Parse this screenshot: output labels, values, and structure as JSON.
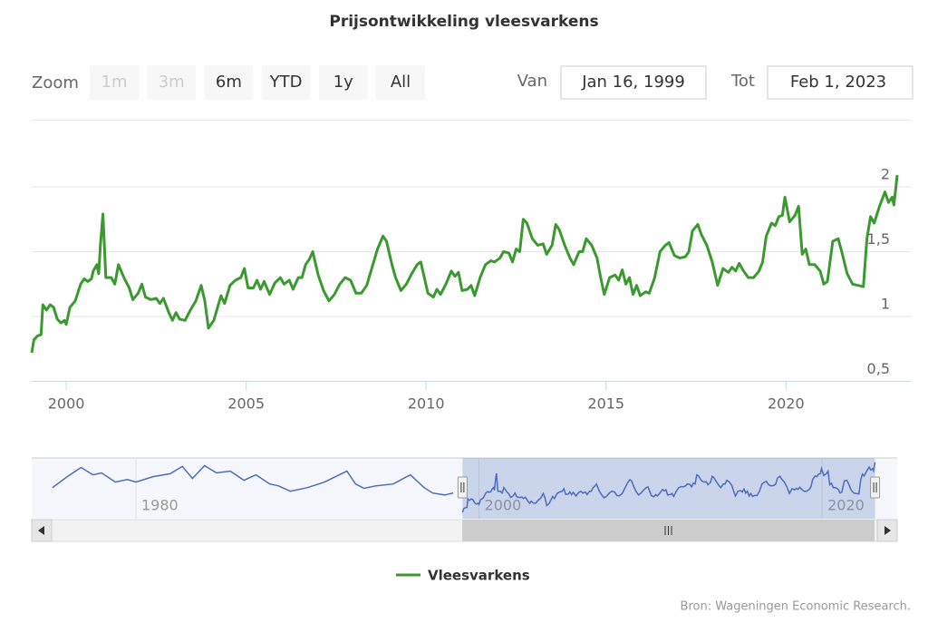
{
  "chart_data": {
    "type": "line",
    "title": "Prijsontwikkeling vleesvarkens",
    "range_selector": {
      "zoom_label": "Zoom",
      "buttons": [
        "1m",
        "3m",
        "6m",
        "YTD",
        "1y",
        "All"
      ],
      "from_label": "Van",
      "from": "Jan 16, 1999",
      "to_label": "Tot",
      "to": "Feb 1, 2023"
    },
    "xlim": [
      1999.04,
      2023.09
    ],
    "xticks": [
      2000,
      2005,
      2010,
      2015,
      2020
    ],
    "ylim": [
      0.5,
      2.5
    ],
    "yticks": [
      {
        "value": 0.5,
        "label": "0,5"
      },
      1,
      {
        "value": 1.5,
        "label": "1,5"
      },
      2
    ],
    "grid": true,
    "x": [
      1999.04,
      1999.1,
      1999.2,
      1999.3,
      1999.35,
      1999.45,
      1999.55,
      1999.65,
      1999.75,
      1999.85,
      1999.95,
      2000.0,
      2000.1,
      2000.25,
      2000.4,
      2000.5,
      2000.6,
      2000.7,
      2000.75,
      2000.85,
      2000.9,
      2000.95,
      2001.02,
      2001.1,
      2001.25,
      2001.35,
      2001.45,
      2001.6,
      2001.75,
      2001.85,
      2002.0,
      2002.1,
      2002.2,
      2002.35,
      2002.5,
      2002.6,
      2002.7,
      2002.85,
      2002.95,
      2003.05,
      2003.15,
      2003.3,
      2003.45,
      2003.6,
      2003.75,
      2003.85,
      2003.95,
      2004.1,
      2004.3,
      2004.4,
      2004.55,
      2004.7,
      2004.85,
      2004.95,
      2005.05,
      2005.2,
      2005.3,
      2005.4,
      2005.5,
      2005.65,
      2005.8,
      2005.95,
      2006.05,
      2006.2,
      2006.3,
      2006.45,
      2006.55,
      2006.65,
      2006.75,
      2006.85,
      2007.0,
      2007.15,
      2007.3,
      2007.45,
      2007.6,
      2007.75,
      2007.9,
      2008.05,
      2008.2,
      2008.35,
      2008.5,
      2008.65,
      2008.8,
      2008.9,
      2009.05,
      2009.15,
      2009.3,
      2009.45,
      2009.6,
      2009.75,
      2009.85,
      2009.95,
      2010.05,
      2010.2,
      2010.3,
      2010.4,
      2010.55,
      2010.7,
      2010.8,
      2010.9,
      2011.0,
      2011.15,
      2011.25,
      2011.35,
      2011.5,
      2011.65,
      2011.8,
      2011.9,
      2012.05,
      2012.15,
      2012.3,
      2012.4,
      2012.5,
      2012.6,
      2012.7,
      2012.8,
      2012.95,
      2013.1,
      2013.25,
      2013.35,
      2013.5,
      2013.6,
      2013.7,
      2013.85,
      2014.0,
      2014.1,
      2014.25,
      2014.35,
      2014.45,
      2014.6,
      2014.75,
      2014.85,
      2014.95,
      2015.1,
      2015.25,
      2015.35,
      2015.45,
      2015.55,
      2015.65,
      2015.75,
      2015.85,
      2015.95,
      2016.1,
      2016.2,
      2016.35,
      2016.5,
      2016.65,
      2016.75,
      2016.9,
      2017.05,
      2017.2,
      2017.3,
      2017.4,
      2017.55,
      2017.65,
      2017.8,
      2017.95,
      2018.1,
      2018.25,
      2018.4,
      2018.5,
      2018.6,
      2018.7,
      2018.8,
      2018.95,
      2019.1,
      2019.25,
      2019.35,
      2019.45,
      2019.6,
      2019.7,
      2019.8,
      2019.9,
      2019.97,
      2020.1,
      2020.25,
      2020.35,
      2020.45,
      2020.55,
      2020.65,
      2020.8,
      2020.95,
      2021.05,
      2021.15,
      2021.3,
      2021.45,
      2021.55,
      2021.7,
      2021.85,
      2022.0,
      2022.15,
      2022.25,
      2022.35,
      2022.45,
      2022.6,
      2022.75,
      2022.85,
      2022.95,
      2023.0,
      2023.09
    ],
    "series": [
      {
        "name": "Vleesvarkens",
        "color": "#3a9a30",
        "values": [
          0.72,
          0.82,
          0.85,
          0.86,
          1.09,
          1.05,
          1.09,
          1.07,
          0.98,
          0.95,
          0.97,
          0.94,
          1.07,
          1.12,
          1.25,
          1.29,
          1.27,
          1.29,
          1.35,
          1.4,
          1.33,
          1.55,
          1.79,
          1.3,
          1.3,
          1.25,
          1.4,
          1.3,
          1.22,
          1.13,
          1.18,
          1.25,
          1.15,
          1.13,
          1.14,
          1.1,
          1.14,
          1.03,
          0.97,
          1.03,
          0.98,
          0.97,
          1.05,
          1.12,
          1.24,
          1.12,
          0.91,
          0.97,
          1.16,
          1.1,
          1.24,
          1.28,
          1.3,
          1.37,
          1.22,
          1.22,
          1.28,
          1.21,
          1.27,
          1.17,
          1.26,
          1.3,
          1.25,
          1.28,
          1.21,
          1.3,
          1.3,
          1.4,
          1.44,
          1.5,
          1.32,
          1.2,
          1.12,
          1.17,
          1.25,
          1.3,
          1.28,
          1.18,
          1.18,
          1.24,
          1.38,
          1.52,
          1.62,
          1.58,
          1.4,
          1.3,
          1.2,
          1.25,
          1.33,
          1.4,
          1.42,
          1.3,
          1.18,
          1.15,
          1.21,
          1.17,
          1.25,
          1.35,
          1.31,
          1.34,
          1.2,
          1.21,
          1.24,
          1.16,
          1.3,
          1.4,
          1.43,
          1.42,
          1.45,
          1.5,
          1.49,
          1.42,
          1.52,
          1.5,
          1.75,
          1.72,
          1.6,
          1.55,
          1.56,
          1.48,
          1.55,
          1.71,
          1.67,
          1.55,
          1.45,
          1.4,
          1.5,
          1.5,
          1.6,
          1.55,
          1.45,
          1.3,
          1.17,
          1.3,
          1.32,
          1.28,
          1.36,
          1.25,
          1.3,
          1.17,
          1.24,
          1.16,
          1.19,
          1.18,
          1.3,
          1.5,
          1.55,
          1.57,
          1.47,
          1.45,
          1.46,
          1.5,
          1.66,
          1.71,
          1.63,
          1.55,
          1.42,
          1.24,
          1.37,
          1.34,
          1.38,
          1.35,
          1.41,
          1.36,
          1.3,
          1.3,
          1.35,
          1.42,
          1.62,
          1.72,
          1.7,
          1.77,
          1.78,
          1.92,
          1.73,
          1.78,
          1.85,
          1.48,
          1.52,
          1.4,
          1.4,
          1.35,
          1.25,
          1.27,
          1.58,
          1.6,
          1.5,
          1.33,
          1.25,
          1.24,
          1.23,
          1.6,
          1.77,
          1.72,
          1.85,
          1.96,
          1.88,
          1.92,
          1.86,
          2.09
        ]
      }
    ],
    "navigator": {
      "color": "#4a6cc2",
      "xlim": [
        1975.14,
        2023.06
      ],
      "xticks": [
        1980,
        2000,
        2020
      ],
      "x": [
        1975.14,
        1976.0,
        1976.8,
        1977.5,
        1978.0,
        1978.8,
        1979.5,
        1980.0,
        1981.0,
        1982.0,
        1982.7,
        1983.3,
        1984.0,
        1984.7,
        1985.5,
        1986.3,
        1987.0,
        1987.8,
        1988.3,
        1989.0,
        1990.0,
        1991.0,
        1992.3,
        1992.8,
        1993.3,
        1994.0,
        1995.0,
        1996.0,
        1996.8,
        1997.3,
        1998.0,
        1998.5
      ],
      "values": [
        1.4,
        1.7,
        1.95,
        1.75,
        1.8,
        1.55,
        1.62,
        1.55,
        1.7,
        1.78,
        1.98,
        1.65,
        2.0,
        1.8,
        1.85,
        1.6,
        1.75,
        1.5,
        1.45,
        1.3,
        1.4,
        1.55,
        1.85,
        1.5,
        1.38,
        1.45,
        1.5,
        1.75,
        1.4,
        1.25,
        1.2,
        1.25
      ]
    },
    "credits": "Bron: Wageningen Economic Research."
  }
}
